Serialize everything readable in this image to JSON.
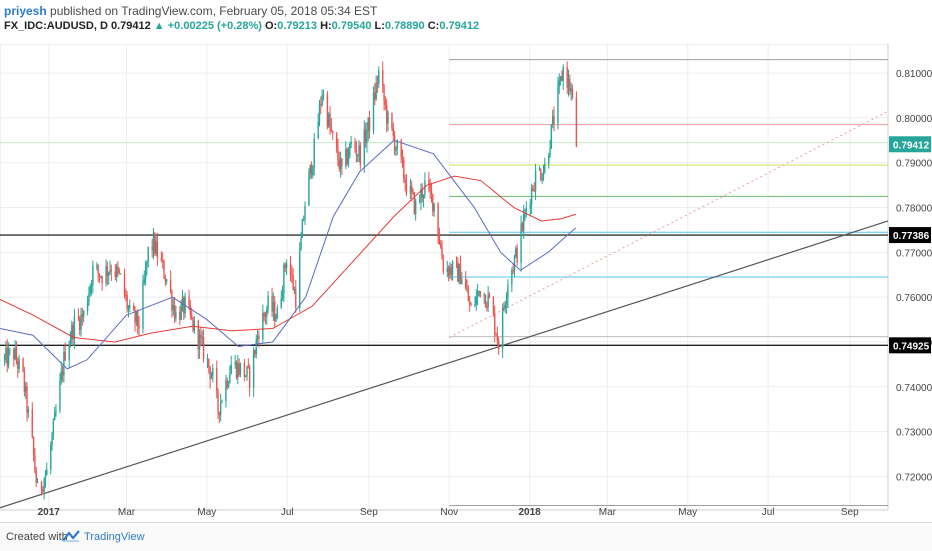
{
  "header": {
    "author": "priyesh",
    "published": "published on TradingView.com, February 05, 2018 05:34 EST",
    "symbol": "FX_IDC:AUDUSD, D",
    "last": "0.79412",
    "arrow": "▲",
    "change": "+0.00225 (+0.28%)",
    "o_label": "O:",
    "o_value": "0.79213",
    "h_label": "H:",
    "h_value": "0.79540",
    "l_label": "L:",
    "l_value": "0.78890",
    "c_label": "C:",
    "c_value": "0.79412"
  },
  "footer": {
    "created_with": "Created with",
    "brand": "TradingView"
  },
  "colors": {
    "up": "#26a69a",
    "down": "#ef5350",
    "ma_red": "#e53935",
    "ma_blue": "#5c6bc0",
    "trend": "#555555",
    "grid": "#eeeeee"
  },
  "chart_data": {
    "type": "candlestick",
    "symbol": "FX_IDC:AUDUSD",
    "interval": "D",
    "x_ticks": [
      "2017",
      "Mar",
      "May",
      "Jul",
      "Sep",
      "Nov",
      "2018",
      "Mar",
      "May",
      "Jul",
      "Sep"
    ],
    "y_ticks": [
      0.72,
      0.73,
      0.74,
      0.75,
      0.76,
      0.77,
      0.78,
      0.79,
      0.8,
      0.81
    ],
    "y_tick_labels": [
      "0.72000",
      "0.73000",
      "0.74000",
      "0.75000",
      "0.76000",
      "0.77000",
      "0.78000",
      "0.79000",
      "0.80000",
      "0.81000"
    ],
    "ylim": [
      0.7125,
      0.8165
    ],
    "x_range": [
      "2016-11-25",
      "2018-09-30"
    ],
    "price_labels": [
      {
        "text": "0.79412",
        "value": 0.79412,
        "style": "green"
      },
      {
        "text": "0.77386",
        "value": 0.77386,
        "style": "black"
      },
      {
        "text": "0.74925",
        "value": 0.74925,
        "style": "black"
      }
    ],
    "close_path": [
      [
        "2016-11-28",
        0.746
      ],
      [
        "2016-12-05",
        0.7475
      ],
      [
        "2016-12-12",
        0.742
      ],
      [
        "2016-12-19",
        0.727
      ],
      [
        "2016-12-23",
        0.7165
      ],
      [
        "2016-12-30",
        0.721
      ],
      [
        "2017-01-06",
        0.734
      ],
      [
        "2017-01-13",
        0.748
      ],
      [
        "2017-01-20",
        0.754
      ],
      [
        "2017-01-27",
        0.756
      ],
      [
        "2017-02-03",
        0.766
      ],
      [
        "2017-02-10",
        0.765
      ],
      [
        "2017-02-17",
        0.767
      ],
      [
        "2017-02-24",
        0.764
      ],
      [
        "2017-03-03",
        0.756
      ],
      [
        "2017-03-10",
        0.754
      ],
      [
        "2017-03-17",
        0.77
      ],
      [
        "2017-03-21",
        0.772
      ],
      [
        "2017-03-31",
        0.764
      ],
      [
        "2017-04-07",
        0.756
      ],
      [
        "2017-04-14",
        0.758
      ],
      [
        "2017-04-21",
        0.753
      ],
      [
        "2017-04-28",
        0.748
      ],
      [
        "2017-05-05",
        0.742
      ],
      [
        "2017-05-09",
        0.735
      ],
      [
        "2017-05-19",
        0.745
      ],
      [
        "2017-05-26",
        0.744
      ],
      [
        "2017-06-02",
        0.742
      ],
      [
        "2017-06-09",
        0.753
      ],
      [
        "2017-06-16",
        0.758
      ],
      [
        "2017-06-23",
        0.756
      ],
      [
        "2017-06-30",
        0.769
      ],
      [
        "2017-07-07",
        0.76
      ],
      [
        "2017-07-14",
        0.781
      ],
      [
        "2017-07-21",
        0.793
      ],
      [
        "2017-07-27",
        0.806
      ],
      [
        "2017-08-04",
        0.795
      ],
      [
        "2017-08-11",
        0.788
      ],
      [
        "2017-08-18",
        0.794
      ],
      [
        "2017-08-25",
        0.792
      ],
      [
        "2017-09-01",
        0.799
      ],
      [
        "2017-09-08",
        0.81
      ],
      [
        "2017-09-15",
        0.799
      ],
      [
        "2017-09-22",
        0.793
      ],
      [
        "2017-09-29",
        0.785
      ],
      [
        "2017-10-06",
        0.78
      ],
      [
        "2017-10-13",
        0.785
      ],
      [
        "2017-10-20",
        0.781
      ],
      [
        "2017-10-27",
        0.767
      ],
      [
        "2017-11-03",
        0.766
      ],
      [
        "2017-11-10",
        0.765
      ],
      [
        "2017-11-17",
        0.757
      ],
      [
        "2017-11-24",
        0.762
      ],
      [
        "2017-12-01",
        0.759
      ],
      [
        "2017-12-08",
        0.75
      ],
      [
        "2017-12-15",
        0.764
      ],
      [
        "2017-12-22",
        0.77
      ],
      [
        "2017-12-29",
        0.78
      ],
      [
        "2018-01-05",
        0.787
      ],
      [
        "2018-01-12",
        0.789
      ],
      [
        "2018-01-19",
        0.8
      ],
      [
        "2018-01-26",
        0.811
      ],
      [
        "2018-02-01",
        0.806
      ],
      [
        "2018-02-05",
        0.7941
      ]
    ],
    "ma_red": [
      [
        "2016-11-25",
        0.7595
      ],
      [
        "2016-12-20",
        0.756
      ],
      [
        "2017-01-20",
        0.751
      ],
      [
        "2017-02-20",
        0.75
      ],
      [
        "2017-03-20",
        0.752
      ],
      [
        "2017-04-20",
        0.7535
      ],
      [
        "2017-05-20",
        0.7525
      ],
      [
        "2017-06-20",
        0.753
      ],
      [
        "2017-07-20",
        0.758
      ],
      [
        "2017-08-20",
        0.768
      ],
      [
        "2017-09-20",
        0.778
      ],
      [
        "2017-10-15",
        0.785
      ],
      [
        "2017-11-05",
        0.787
      ],
      [
        "2017-11-25",
        0.786
      ],
      [
        "2017-12-20",
        0.78
      ],
      [
        "2018-01-10",
        0.777
      ],
      [
        "2018-01-25",
        0.7775
      ],
      [
        "2018-02-05",
        0.7785
      ]
    ],
    "ma_blue": [
      [
        "2016-11-25",
        0.753
      ],
      [
        "2016-12-20",
        0.7515
      ],
      [
        "2017-01-15",
        0.744
      ],
      [
        "2017-01-30",
        0.746
      ],
      [
        "2017-03-01",
        0.756
      ],
      [
        "2017-04-05",
        0.76
      ],
      [
        "2017-05-01",
        0.755
      ],
      [
        "2017-05-25",
        0.749
      ],
      [
        "2017-06-20",
        0.75
      ],
      [
        "2017-07-15",
        0.76
      ],
      [
        "2017-08-05",
        0.778
      ],
      [
        "2017-08-25",
        0.788
      ],
      [
        "2017-09-20",
        0.795
      ],
      [
        "2017-10-20",
        0.792
      ],
      [
        "2017-11-20",
        0.78
      ],
      [
        "2017-12-10",
        0.77
      ],
      [
        "2017-12-25",
        0.766
      ],
      [
        "2018-01-15",
        0.77
      ],
      [
        "2018-02-05",
        0.7755
      ]
    ],
    "trendlines": [
      {
        "from": [
          "2016-11-25",
          0.713
        ],
        "to": [
          "2018-09-30",
          0.777
        ],
        "style": "solid"
      },
      {
        "from": [
          "2017-11-01",
          0.751
        ],
        "to": [
          "2018-09-30",
          0.8015
        ],
        "style": "dotted-red"
      }
    ],
    "horizontal_levels": [
      {
        "value": 0.813,
        "from": "2017-11-01",
        "color": "#9e9e9e"
      },
      {
        "value": 0.7985,
        "from": "2017-11-01",
        "color": "#ef9a9a"
      },
      {
        "value": 0.7945,
        "from": "2016-11-25",
        "color": "#c8e6c9"
      },
      {
        "value": 0.7895,
        "from": "2017-11-01",
        "color": "#d4e157"
      },
      {
        "value": 0.7825,
        "from": "2017-11-01",
        "color": "#66bb6a"
      },
      {
        "value": 0.7745,
        "from": "2017-11-01",
        "color": "#4fc3f7"
      },
      {
        "value": 0.77386,
        "from": "2016-11-25",
        "color": "#333333"
      },
      {
        "value": 0.7645,
        "from": "2017-11-01",
        "color": "#4fc3f7"
      },
      {
        "value": 0.7512,
        "from": "2017-11-01",
        "color": "#bdbdbd"
      },
      {
        "value": 0.74925,
        "from": "2016-11-25",
        "color": "#222222"
      },
      {
        "value": 0.7135,
        "from": "2017-11-01",
        "color": "#9e9e9e"
      }
    ]
  }
}
